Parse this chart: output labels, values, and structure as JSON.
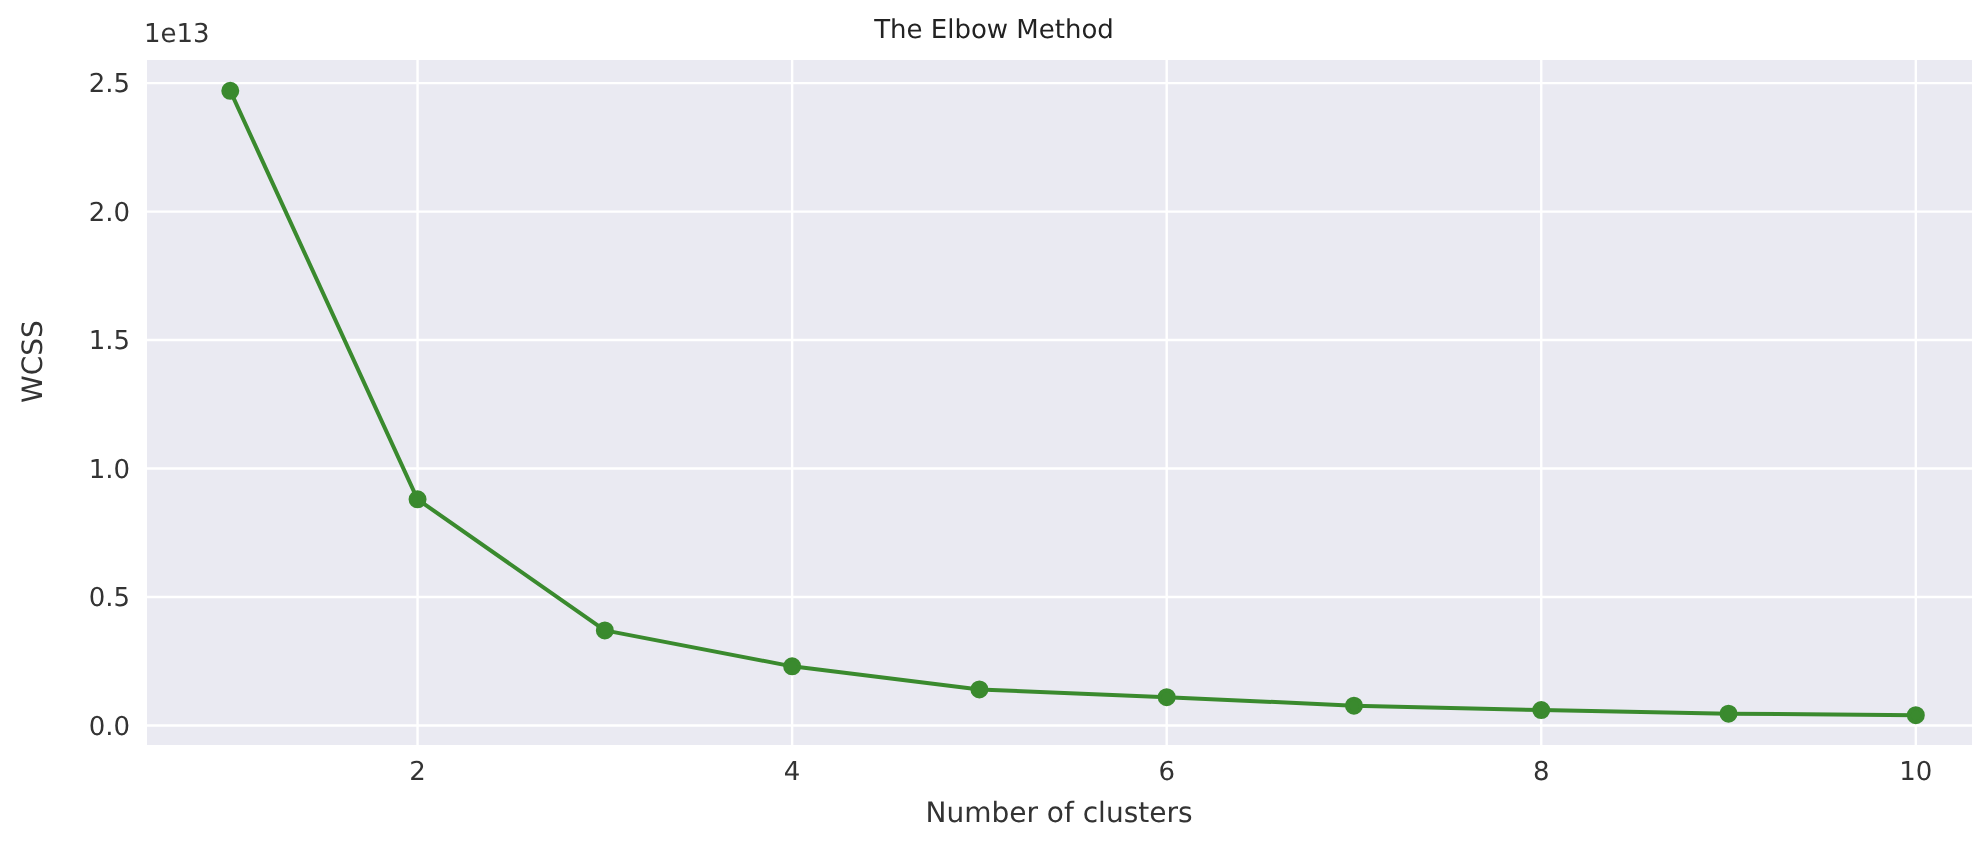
{
  "chart_data": {
    "type": "line",
    "title": "The Elbow Method",
    "xlabel": "Number of clusters",
    "ylabel": "WCSS",
    "annotations": [
      "1e13"
    ],
    "x": [
      1,
      2,
      3,
      4,
      5,
      6,
      7,
      8,
      9,
      10
    ],
    "series": [
      {
        "color": "#3a8a2e",
        "values": [
          2.47,
          0.88,
          0.37,
          0.23,
          0.14,
          0.11,
          0.077,
          0.06,
          0.046,
          0.04
        ]
      }
    ],
    "xlim": [
      0.55,
      10.3
    ],
    "ylim": [
      -0.08,
      2.59
    ],
    "xticks": [
      2,
      4,
      6,
      8,
      10
    ],
    "yticks": [
      {
        "value": 0,
        "label": "0.0"
      },
      {
        "value": 0.5,
        "label": "0.5"
      },
      {
        "value": 1,
        "label": "1.0"
      },
      {
        "value": 1.5,
        "label": "1.5"
      },
      {
        "value": 2,
        "label": "2.0"
      },
      {
        "value": 2.5,
        "label": "2.5"
      }
    ],
    "grid": true,
    "marker": "circle",
    "line_style": "solid",
    "legend": false
  }
}
